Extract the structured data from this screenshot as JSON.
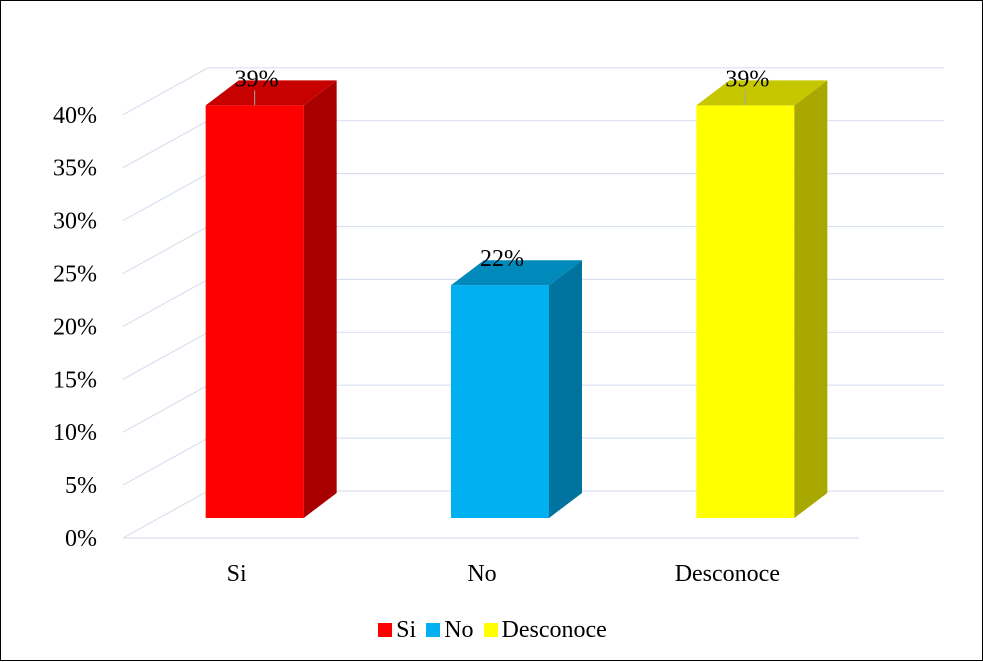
{
  "chart_data": {
    "type": "bar",
    "variant": "3d-column",
    "categories": [
      "Si",
      "No",
      "Desconoce"
    ],
    "values": [
      39,
      22,
      39
    ],
    "data_labels": [
      "39%",
      "22%",
      "39%"
    ],
    "colors": [
      "#FF0000",
      "#00B0F0",
      "#FFFF00"
    ],
    "ylim": [
      0,
      40
    ],
    "y_ticks": [
      "0%",
      "5%",
      "10%",
      "15%",
      "20%",
      "25%",
      "30%",
      "35%",
      "40%"
    ],
    "y_tick_values": [
      0,
      5,
      10,
      15,
      20,
      25,
      30,
      35,
      40
    ],
    "grid": true,
    "legend_position": "bottom",
    "legend": [
      "Si",
      "No",
      "Desconoce"
    ],
    "title": "",
    "xlabel": "",
    "ylabel": ""
  }
}
